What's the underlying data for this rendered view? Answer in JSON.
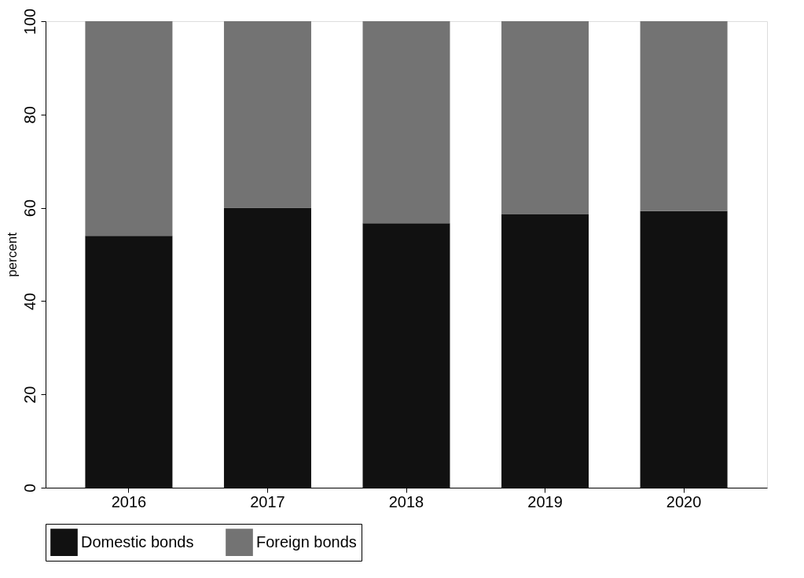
{
  "chart_data": {
    "type": "bar",
    "stacked": true,
    "ylabel": "percent",
    "categories": [
      "2016",
      "2017",
      "2018",
      "2019",
      "2020"
    ],
    "series": [
      {
        "name": "Domestic bonds",
        "color": "#111111",
        "values": [
          54,
          60,
          56.7,
          58.6,
          59.3
        ]
      },
      {
        "name": "Foreign bonds",
        "color": "#737373",
        "values": [
          46,
          40,
          43.3,
          41.4,
          40.7
        ]
      }
    ],
    "ylim": [
      0,
      100
    ],
    "yticks": [
      0,
      20,
      40,
      60,
      80,
      100
    ],
    "grid": false,
    "legend": "bottom"
  }
}
